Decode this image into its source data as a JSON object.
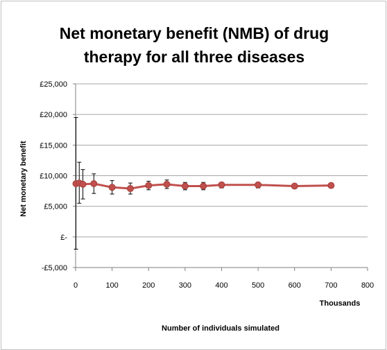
{
  "chart_data": {
    "type": "line",
    "title_lines": [
      "Net monetary benefit (NMB) of drug",
      "therapy for all three diseases"
    ],
    "xlabel": "Number of individuals simulated",
    "x_unit_label": "Thousands",
    "ylabel": "Net monetary benefit",
    "xlim": [
      0,
      800
    ],
    "ylim": [
      -5000,
      25000
    ],
    "x_ticks": [
      "0",
      "100",
      "200",
      "300",
      "400",
      "500",
      "600",
      "700",
      "800"
    ],
    "y_ticks": [
      "-£5,000",
      "£-",
      "£5,000",
      "£10,000",
      "£15,000",
      "£20,000",
      "£25,000"
    ],
    "grid": "horizontal",
    "series_color": "#c0504d",
    "points": [
      {
        "x": 1,
        "y": 8700,
        "ylo": -2000,
        "yhi": 19500
      },
      {
        "x": 10,
        "y": 8800,
        "ylo": 5500,
        "yhi": 12200
      },
      {
        "x": 20,
        "y": 8600,
        "ylo": 6200,
        "yhi": 11000
      },
      {
        "x": 50,
        "y": 8700,
        "ylo": 7100,
        "yhi": 10300
      },
      {
        "x": 100,
        "y": 8100,
        "ylo": 7000,
        "yhi": 9200
      },
      {
        "x": 150,
        "y": 7900,
        "ylo": 7000,
        "yhi": 8800
      },
      {
        "x": 200,
        "y": 8400,
        "ylo": 7700,
        "yhi": 9100
      },
      {
        "x": 250,
        "y": 8600,
        "ylo": 7900,
        "yhi": 9300
      },
      {
        "x": 300,
        "y": 8300,
        "ylo": 7700,
        "yhi": 8900
      },
      {
        "x": 350,
        "y": 8300,
        "ylo": 7700,
        "yhi": 8900
      },
      {
        "x": 400,
        "y": 8500,
        "ylo": 8000,
        "yhi": 8900
      },
      {
        "x": 500,
        "y": 8500,
        "ylo": 8000,
        "yhi": 8900
      },
      {
        "x": 600,
        "y": 8300,
        "ylo": 7900,
        "yhi": 8700
      },
      {
        "x": 700,
        "y": 8400,
        "ylo": 8000,
        "yhi": 8800
      }
    ]
  }
}
